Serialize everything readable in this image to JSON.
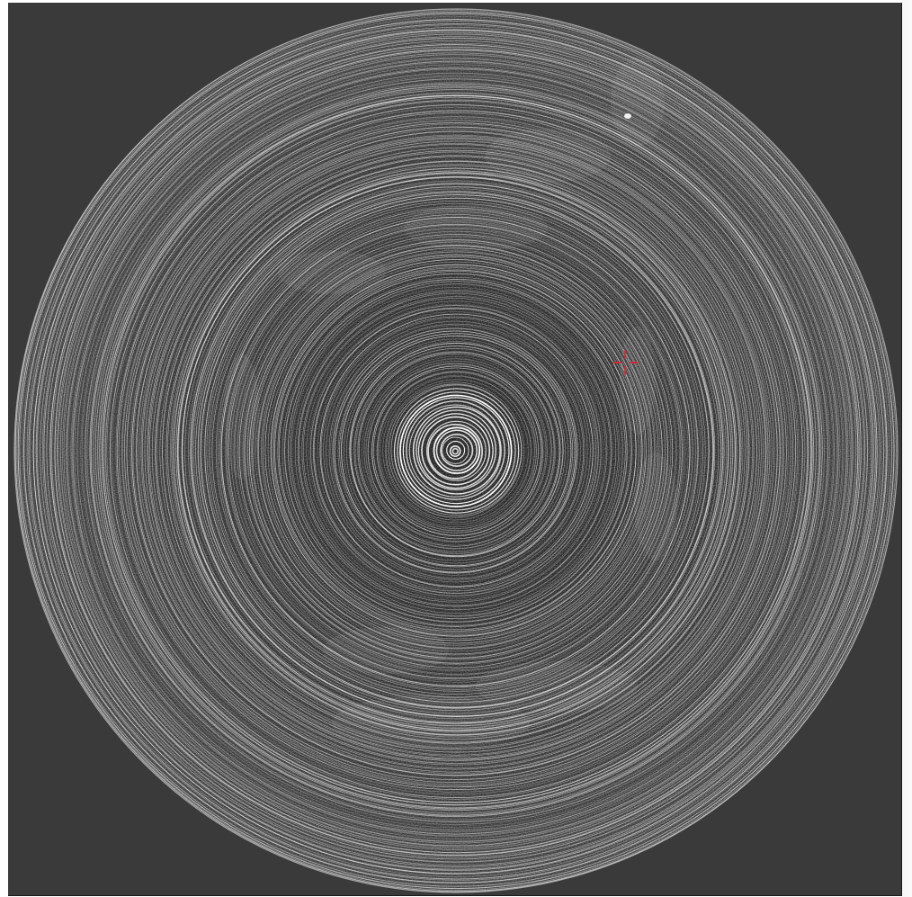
{
  "image": {
    "subject": "radial-ring-scan",
    "background_color": "#3a3a3a",
    "disc_color": "#151515",
    "ring_color": "#ffffff",
    "marker_color": "#e0202a"
  },
  "marker": {
    "icon": "crosshair-icon"
  }
}
